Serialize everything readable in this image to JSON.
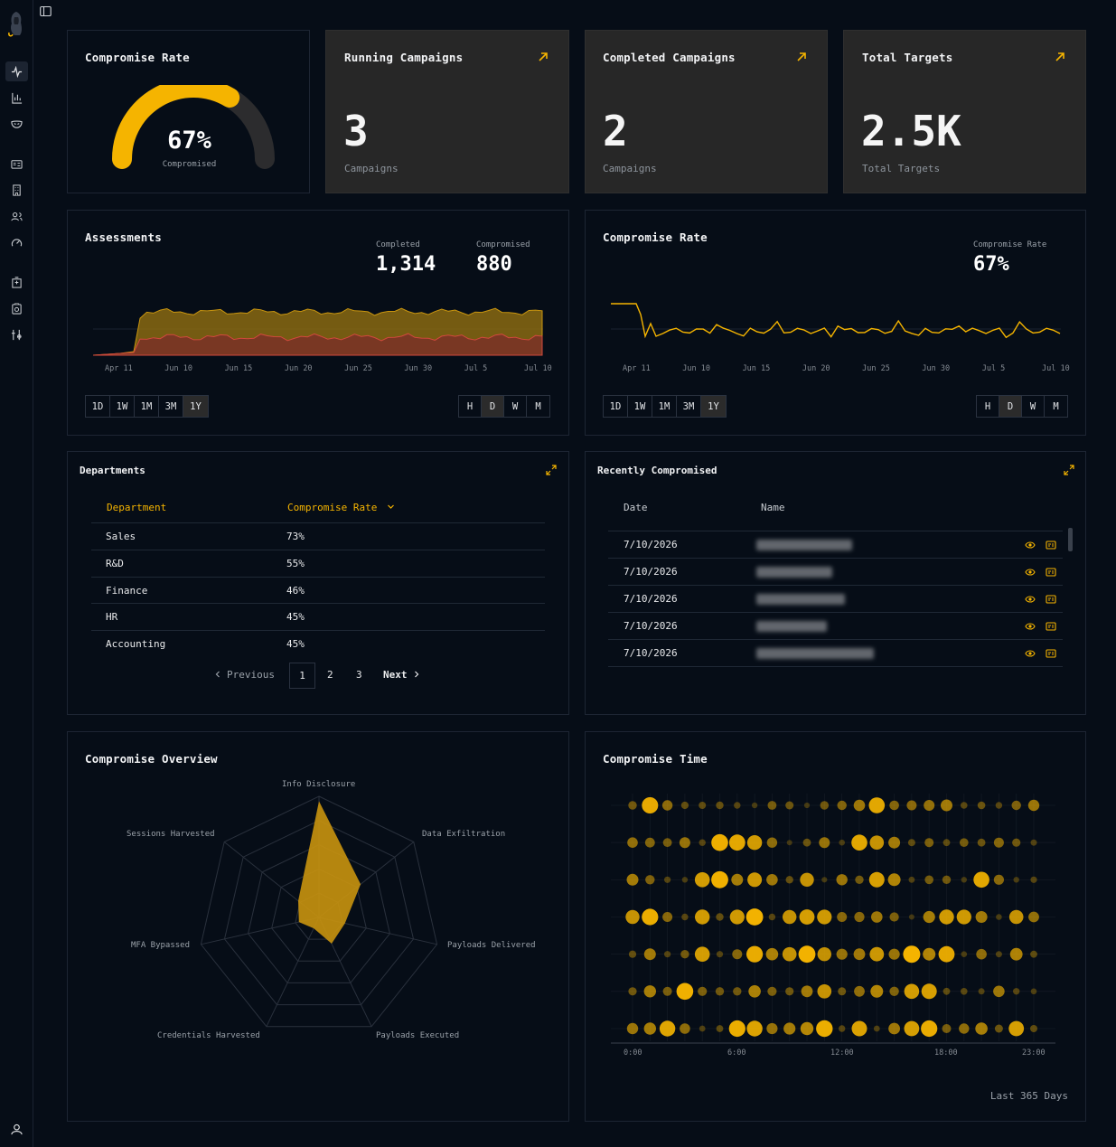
{
  "sidebar": {
    "icons": [
      "activity-icon",
      "bar-chart-icon",
      "mask-icon",
      "id-card-icon",
      "building-icon",
      "users-icon",
      "gauge-icon",
      "hospital-icon",
      "clipboard-icon",
      "settings-icon"
    ],
    "user_icon": "user-icon"
  },
  "kpis": {
    "compromise_rate": {
      "title": "Compromise Rate",
      "value": "67%",
      "fraction": 0.67,
      "sub": "Compromised"
    },
    "running": {
      "title": "Running Campaigns",
      "value": "3",
      "sub": "Campaigns"
    },
    "completed": {
      "title": "Completed Campaigns",
      "value": "2",
      "sub": "Campaigns"
    },
    "targets": {
      "title": "Total Targets",
      "value": "2.5K",
      "sub": "Total Targets"
    }
  },
  "assessments": {
    "title": "Assessments",
    "completed_label": "Completed",
    "completed_value": "1,314",
    "compromised_label": "Compromised",
    "compromised_value": "880",
    "x_ticks": [
      "Apr 11",
      "Jun 10",
      "Jun 15",
      "Jun 20",
      "Jun 25",
      "Jun 30",
      "Jul 5",
      "Jul 10"
    ],
    "range_buttons": [
      "1D",
      "1W",
      "1M",
      "3M",
      "1Y"
    ],
    "range_selected": "1Y",
    "gran_buttons": [
      "H",
      "D",
      "W",
      "M"
    ],
    "gran_selected": "D"
  },
  "rate_chart": {
    "title": "Compromise Rate",
    "label": "Compromise Rate",
    "value": "67%",
    "x_ticks": [
      "Apr 11",
      "Jun 10",
      "Jun 15",
      "Jun 20",
      "Jun 25",
      "Jun 30",
      "Jul 5",
      "Jul 10"
    ],
    "range_buttons": [
      "1D",
      "1W",
      "1M",
      "3M",
      "1Y"
    ],
    "range_selected": "1Y",
    "gran_buttons": [
      "H",
      "D",
      "W",
      "M"
    ],
    "gran_selected": "D"
  },
  "departments": {
    "title": "Departments",
    "col_department": "Department",
    "col_rate": "Compromise Rate",
    "rows": [
      {
        "name": "Sales",
        "rate": "73%"
      },
      {
        "name": "R&D",
        "rate": "55%"
      },
      {
        "name": "Finance",
        "rate": "46%"
      },
      {
        "name": "HR",
        "rate": "45%"
      },
      {
        "name": "Accounting",
        "rate": "45%"
      }
    ],
    "pager": {
      "previous": "Previous",
      "pages": [
        "1",
        "2",
        "3"
      ],
      "current": "1",
      "next": "Next"
    }
  },
  "recent": {
    "title": "Recently Compromised",
    "col_date": "Date",
    "col_name": "Name",
    "rows": [
      {
        "date": "7/10/2026"
      },
      {
        "date": "7/10/2026"
      },
      {
        "date": "7/10/2026"
      },
      {
        "date": "7/10/2026"
      },
      {
        "date": "7/10/2026"
      }
    ]
  },
  "overview": {
    "title": "Compromise Overview",
    "axes": [
      "Info Disclosure",
      "Data Exfiltration",
      "Payloads Delivered",
      "Payloads Executed",
      "Credentials Harvested",
      "MFA Bypassed",
      "Sessions Harvested"
    ],
    "values": [
      0.96,
      0.44,
      0.22,
      0.24,
      0.1,
      0.17,
      0.22
    ]
  },
  "compromise_time": {
    "title": "Compromise Time",
    "x_ticks": [
      "0:00",
      "6:00",
      "12:00",
      "18:00",
      "23:00"
    ],
    "footer": "Last 365 Days"
  },
  "colors": {
    "accent": "#f5b400",
    "bg": "#060d17",
    "card": "#272727",
    "red": "#c0443a"
  }
}
